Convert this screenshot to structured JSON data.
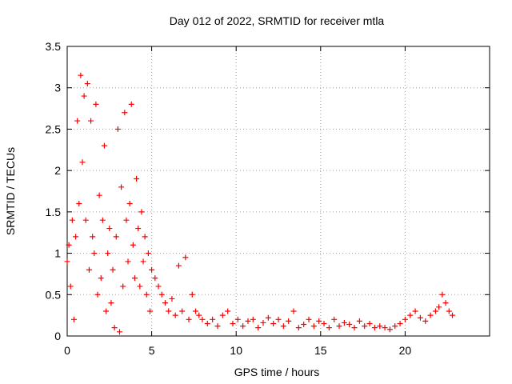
{
  "chart_data": {
    "type": "scatter",
    "title": "Day 012 of 2022, SRMTID for receiver mtla",
    "xlabel": "GPS time / hours",
    "ylabel": "SRMTID / TECUs",
    "xlim": [
      0,
      25
    ],
    "ylim": [
      0,
      3.5
    ],
    "xticks": [
      0,
      5,
      10,
      15,
      20
    ],
    "xtick_labels": [
      "0",
      "5",
      "10",
      "15",
      "20"
    ],
    "yticks": [
      0,
      0.5,
      1,
      1.5,
      2,
      2.5,
      3,
      3.5
    ],
    "ytick_labels": [
      "0",
      "0.5",
      "1",
      "1.5",
      "2",
      "2.5",
      "3",
      "3.5"
    ],
    "grid": true,
    "marker": "+",
    "series": [
      {
        "name": "SRMTID",
        "color": "#ff0000",
        "x": [
          0.0,
          0.1,
          0.2,
          0.3,
          0.4,
          0.5,
          0.6,
          0.7,
          0.8,
          0.9,
          1.0,
          1.1,
          1.2,
          1.3,
          1.4,
          1.5,
          1.6,
          1.7,
          1.8,
          1.9,
          2.0,
          2.1,
          2.2,
          2.3,
          2.4,
          2.5,
          2.6,
          2.7,
          2.8,
          2.9,
          3.0,
          3.1,
          3.2,
          3.3,
          3.4,
          3.5,
          3.6,
          3.7,
          3.8,
          3.9,
          4.0,
          4.1,
          4.2,
          4.3,
          4.4,
          4.5,
          4.6,
          4.7,
          4.8,
          4.9,
          5.0,
          5.2,
          5.4,
          5.6,
          5.8,
          6.0,
          6.2,
          6.4,
          6.6,
          6.8,
          7.0,
          7.2,
          7.4,
          7.6,
          7.8,
          8.0,
          8.3,
          8.6,
          8.9,
          9.2,
          9.5,
          9.8,
          10.1,
          10.4,
          10.7,
          11.0,
          11.3,
          11.6,
          11.9,
          12.2,
          12.5,
          12.8,
          13.1,
          13.4,
          13.7,
          14.0,
          14.3,
          14.6,
          14.9,
          15.2,
          15.5,
          15.8,
          16.1,
          16.4,
          16.7,
          17.0,
          17.3,
          17.6,
          17.9,
          18.2,
          18.5,
          18.8,
          19.1,
          19.4,
          19.7,
          20.0,
          20.3,
          20.6,
          20.9,
          21.2,
          21.5,
          21.8,
          22.0,
          22.2,
          22.4,
          22.6,
          22.8
        ],
        "y": [
          0.9,
          1.1,
          0.6,
          1.4,
          0.2,
          1.2,
          2.6,
          1.6,
          3.15,
          2.1,
          2.9,
          1.4,
          3.05,
          0.8,
          2.6,
          1.2,
          1.0,
          2.8,
          0.5,
          1.7,
          0.7,
          1.4,
          2.3,
          0.3,
          1.0,
          1.3,
          0.4,
          0.8,
          0.1,
          1.2,
          2.5,
          0.05,
          1.8,
          0.6,
          2.7,
          1.4,
          0.9,
          1.6,
          2.8,
          1.1,
          0.7,
          1.9,
          1.3,
          0.6,
          1.5,
          0.9,
          1.2,
          0.5,
          1.0,
          0.3,
          0.8,
          0.7,
          0.6,
          0.5,
          0.4,
          0.3,
          0.45,
          0.25,
          0.85,
          0.3,
          0.95,
          0.2,
          0.5,
          0.3,
          0.25,
          0.2,
          0.15,
          0.2,
          0.12,
          0.25,
          0.3,
          0.15,
          0.2,
          0.12,
          0.18,
          0.2,
          0.1,
          0.16,
          0.22,
          0.15,
          0.2,
          0.12,
          0.18,
          0.3,
          0.1,
          0.14,
          0.2,
          0.12,
          0.18,
          0.15,
          0.1,
          0.2,
          0.12,
          0.16,
          0.14,
          0.1,
          0.18,
          0.12,
          0.15,
          0.1,
          0.12,
          0.1,
          0.08,
          0.12,
          0.15,
          0.2,
          0.25,
          0.3,
          0.22,
          0.18,
          0.25,
          0.3,
          0.35,
          0.5,
          0.4,
          0.3,
          0.25
        ]
      }
    ]
  }
}
